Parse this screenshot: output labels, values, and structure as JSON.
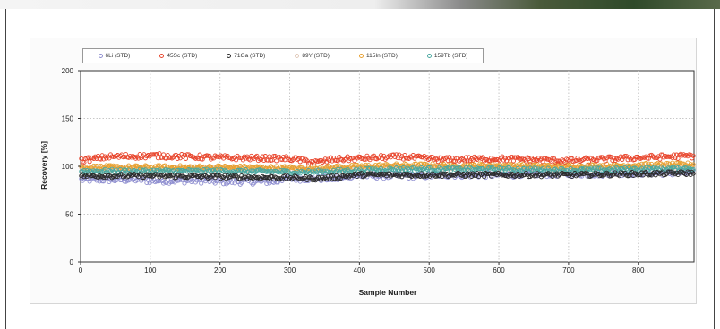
{
  "chart_data": {
    "type": "scatter",
    "title": "",
    "xlabel": "Sample Number",
    "ylabel": "Recovery [%]",
    "xlim": [
      0,
      880
    ],
    "ylim": [
      0,
      200
    ],
    "xticks": [
      0,
      100,
      200,
      300,
      400,
      500,
      600,
      700,
      800
    ],
    "yticks": [
      0,
      50,
      100,
      150,
      200
    ],
    "grid": true,
    "legend_position": "top-left",
    "point_count": 880,
    "series": [
      {
        "name": "6Li (STD)",
        "color": "#8f8fd0",
        "mean": 89,
        "spread": 3,
        "segments": [
          {
            "from": 0,
            "to": 380,
            "values": [
              86,
              85,
              84,
              87
            ]
          },
          {
            "from": 380,
            "to": 880,
            "values": [
              90,
              91,
              92,
              93
            ]
          }
        ]
      },
      {
        "name": "45Sc (STD)",
        "color": "#e8452c",
        "mean": 109,
        "spread": 2.5,
        "trend": [
          [
            0,
            106
          ],
          [
            40,
            110
          ],
          [
            110,
            111
          ],
          [
            200,
            109
          ],
          [
            300,
            108
          ],
          [
            340,
            104
          ],
          [
            360,
            107
          ],
          [
            460,
            110
          ],
          [
            520,
            107
          ],
          [
            600,
            108
          ],
          [
            700,
            106
          ],
          [
            800,
            109
          ],
          [
            880,
            111
          ]
        ]
      },
      {
        "name": "71Ga (STD)",
        "color": "#2a2a2a",
        "mean": 91,
        "spread": 2,
        "trend": [
          [
            0,
            90
          ],
          [
            100,
            90
          ],
          [
            200,
            89
          ],
          [
            300,
            88
          ],
          [
            340,
            87
          ],
          [
            400,
            91
          ],
          [
            500,
            91
          ],
          [
            600,
            91
          ],
          [
            700,
            91
          ],
          [
            800,
            92
          ],
          [
            880,
            93
          ]
        ]
      },
      {
        "name": "89Y (STD)",
        "color": "#e0c8b8",
        "mean": 98,
        "spread": 2,
        "trend": [
          [
            0,
            97
          ],
          [
            200,
            97
          ],
          [
            330,
            96
          ],
          [
            450,
            99
          ],
          [
            600,
            99
          ],
          [
            700,
            98
          ],
          [
            880,
            100
          ]
        ]
      },
      {
        "name": "115In (STD)",
        "color": "#e8a030",
        "mean": 100,
        "spread": 2,
        "trend": [
          [
            0,
            99
          ],
          [
            200,
            99
          ],
          [
            330,
            98
          ],
          [
            450,
            101
          ],
          [
            600,
            101
          ],
          [
            700,
            100
          ],
          [
            880,
            102
          ]
        ]
      },
      {
        "name": "159Tb (STD)",
        "color": "#4aa8a0",
        "mean": 96,
        "spread": 2,
        "trend": [
          [
            0,
            95
          ],
          [
            200,
            95
          ],
          [
            330,
            94
          ],
          [
            450,
            97
          ],
          [
            600,
            97
          ],
          [
            700,
            96
          ],
          [
            880,
            98
          ]
        ]
      }
    ]
  },
  "colors": {
    "grid": "#c8c8c8",
    "axis": "#333333",
    "plot_bg": "#ffffff"
  }
}
